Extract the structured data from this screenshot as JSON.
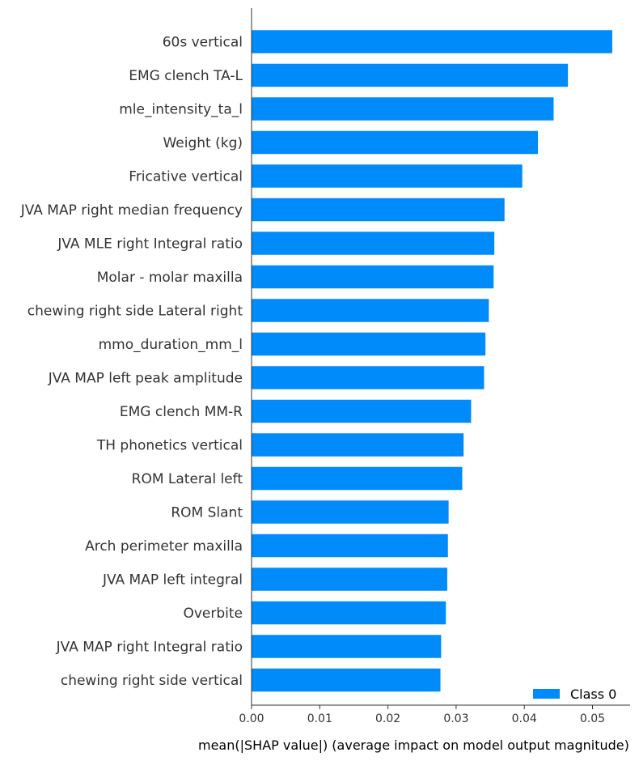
{
  "chart_data": {
    "type": "bar",
    "orientation": "horizontal",
    "categories": [
      "60s vertical",
      "EMG clench TA-L",
      "mle_intensity_ta_l",
      "Weight (kg)",
      "Fricative vertical",
      "JVA MAP right median frequency",
      "JVA MLE right Integral ratio",
      "Molar - molar maxilla ",
      "chewing right side Lateral right",
      "mmo_duration_mm_l",
      "JVA MAP left peak amplitude",
      "EMG clench MM-R",
      "TH phonetics vertical",
      "ROM Lateral left",
      "ROM Slant",
      "Arch perimeter maxilla",
      "JVA MAP left integral",
      "Overbite",
      "JVA MAP right Integral ratio",
      "chewing right side vertical"
    ],
    "series": [
      {
        "name": "Class 0",
        "color": "#008bfb",
        "values": [
          0.0529,
          0.0464,
          0.0443,
          0.042,
          0.0397,
          0.0371,
          0.0356,
          0.0355,
          0.0348,
          0.0343,
          0.0341,
          0.0322,
          0.0311,
          0.0309,
          0.0289,
          0.0288,
          0.0287,
          0.0285,
          0.0278,
          0.0277
        ]
      }
    ],
    "xlabel": "mean(|SHAP value|) (average impact on model output magnitude)",
    "ylabel": "",
    "xlim": [
      0,
      0.055
    ],
    "xticks": [
      "0.00",
      "0.01",
      "0.02",
      "0.03",
      "0.04",
      "0.05"
    ],
    "xtick_values": [
      0,
      0.01,
      0.02,
      0.03,
      0.04,
      0.05
    ],
    "legend": {
      "position": "bottom-right",
      "entries": [
        "Class 0"
      ]
    },
    "grid": false
  }
}
